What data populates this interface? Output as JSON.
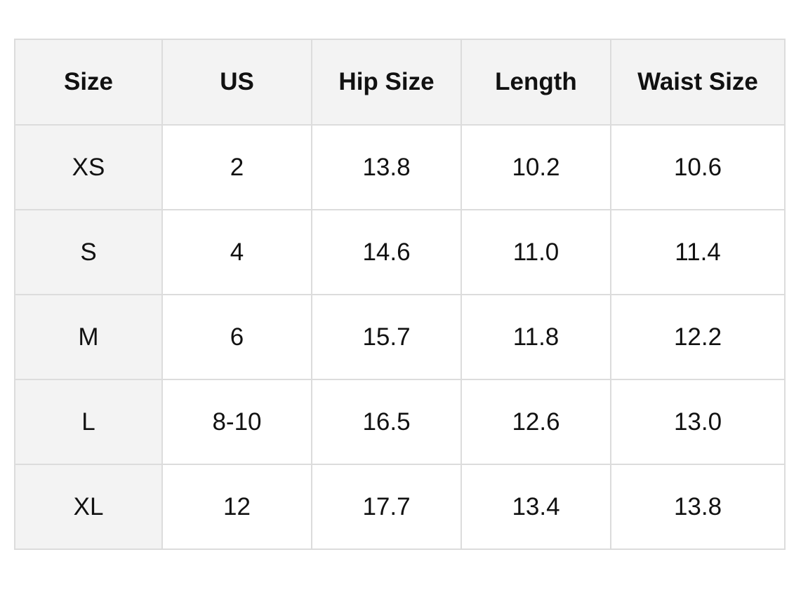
{
  "table": {
    "headers": [
      "Size",
      "US",
      "Hip Size",
      "Length",
      "Waist Size"
    ],
    "rows": [
      [
        "XS",
        "2",
        "13.8",
        "10.2",
        "10.6"
      ],
      [
        "S",
        "4",
        "14.6",
        "11.0",
        "11.4"
      ],
      [
        "M",
        "6",
        "15.7",
        "11.8",
        "12.2"
      ],
      [
        "L",
        "8-10",
        "16.5",
        "12.6",
        "13.0"
      ],
      [
        "XL",
        "12",
        "17.7",
        "13.4",
        "13.8"
      ]
    ]
  },
  "colors": {
    "header_bg": "#f3f3f3",
    "border": "#dcdcdc",
    "text": "#111111"
  }
}
